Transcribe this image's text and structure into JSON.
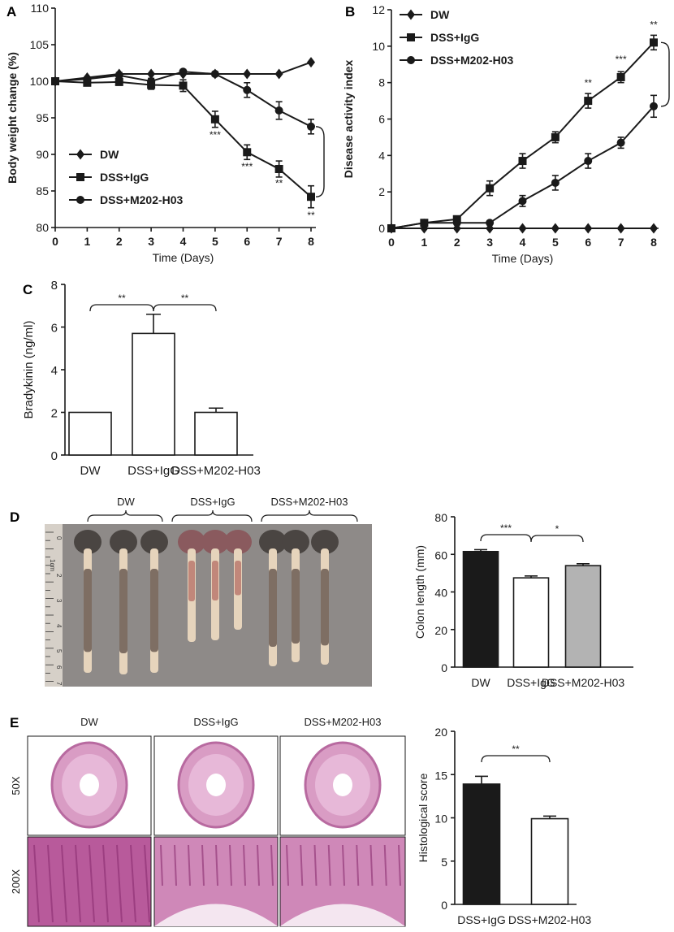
{
  "colors": {
    "ink": "#1a1a1a",
    "grey_bar": "#b3b3b3",
    "white": "#ffffff",
    "photo_bg": "#8e8a88",
    "tissue": "#c86fa6"
  },
  "panels": {
    "a": "A",
    "b": "B",
    "c": "C",
    "d": "D",
    "e": "E"
  },
  "chart_data": [
    {
      "id": "A",
      "type": "line",
      "xlabel": "Time (Days)",
      "ylabel": "Body weight change (%)",
      "x": [
        0,
        1,
        2,
        3,
        4,
        5,
        6,
        7,
        8
      ],
      "xlim": [
        0,
        8
      ],
      "ylim": [
        80,
        110
      ],
      "yticks": [
        80,
        85,
        90,
        95,
        100,
        105,
        110
      ],
      "series": [
        {
          "name": "DW",
          "marker": "diamond",
          "values": [
            100,
            100.5,
            101,
            101,
            101,
            101,
            101,
            101,
            102.6
          ],
          "err": [
            0,
            0,
            0,
            0,
            0,
            0,
            0,
            0,
            0
          ]
        },
        {
          "name": "DSS+IgG",
          "marker": "square",
          "values": [
            100,
            99.8,
            99.9,
            99.5,
            99.4,
            94.8,
            90.3,
            88,
            84.2
          ],
          "err": [
            0.3,
            0.4,
            0.4,
            0.6,
            0.8,
            1.1,
            1,
            1.1,
            1.5
          ]
        },
        {
          "name": "DSS+M202-H03",
          "marker": "circle",
          "values": [
            100,
            100.3,
            100.8,
            100,
            101.3,
            101,
            98.8,
            96,
            93.8
          ],
          "err": [
            0.3,
            0.3,
            0.4,
            0.4,
            0.3,
            0.3,
            1,
            1.2,
            1
          ]
        }
      ],
      "annotations": [
        {
          "x": 5,
          "y": 92.2,
          "text": "***"
        },
        {
          "x": 6,
          "y": 87.9,
          "text": "***"
        },
        {
          "x": 7,
          "y": 85.6,
          "text": "**"
        },
        {
          "x": 8,
          "y": 81.2,
          "text": "**"
        }
      ],
      "bracket_between": [
        "DSS+IgG",
        "DSS+M202-H03"
      ],
      "legend": "bottom-left"
    },
    {
      "id": "B",
      "type": "line",
      "xlabel": "Time (Days)",
      "ylabel": "Disease activity index",
      "x": [
        0,
        1,
        2,
        3,
        4,
        5,
        6,
        7,
        8
      ],
      "xlim": [
        0,
        8
      ],
      "ylim": [
        0,
        12
      ],
      "yticks": [
        0,
        2,
        4,
        6,
        8,
        10,
        12
      ],
      "series": [
        {
          "name": "DW",
          "marker": "diamond",
          "values": [
            0,
            0,
            0,
            0,
            0,
            0,
            0,
            0,
            0
          ],
          "err": [
            0,
            0,
            0,
            0,
            0,
            0,
            0,
            0,
            0
          ]
        },
        {
          "name": "DSS+IgG",
          "marker": "square",
          "values": [
            0,
            0.3,
            0.5,
            2.2,
            3.7,
            5,
            7,
            8.3,
            10.2
          ],
          "err": [
            0,
            0.1,
            0.1,
            0.4,
            0.4,
            0.3,
            0.4,
            0.3,
            0.4
          ]
        },
        {
          "name": "DSS+M202-H03",
          "marker": "circle",
          "values": [
            0,
            0.3,
            0.3,
            0.3,
            1.5,
            2.5,
            3.7,
            4.7,
            6.7
          ],
          "err": [
            0,
            0.1,
            0.1,
            0.1,
            0.3,
            0.4,
            0.4,
            0.3,
            0.6
          ]
        }
      ],
      "annotations": [
        {
          "x": 6,
          "y": 7.8,
          "text": "**"
        },
        {
          "x": 7,
          "y": 9.1,
          "text": "***"
        },
        {
          "x": 8,
          "y": 11,
          "text": "**"
        }
      ],
      "bracket_between": [
        "DSS+IgG",
        "DSS+M202-H03"
      ],
      "legend": "top-left"
    },
    {
      "id": "C",
      "type": "bar",
      "ylabel": "Bradykinin (ng/ml)",
      "categories": [
        "DW",
        "DSS+IgG",
        "DSS+M202-H03"
      ],
      "values": [
        2,
        5.7,
        2
      ],
      "err": [
        0,
        0.9,
        0.2
      ],
      "fills": [
        "white",
        "white",
        "white"
      ],
      "ylim": [
        0,
        8
      ],
      "yticks": [
        0,
        2,
        4,
        6,
        8
      ],
      "comparisons": [
        {
          "from": 0,
          "to": 1,
          "text": "**"
        },
        {
          "from": 1,
          "to": 2,
          "text": "**"
        }
      ]
    },
    {
      "id": "D",
      "type": "bar",
      "ylabel": "Colon length (mm)",
      "categories": [
        "DW",
        "DSS+IgG",
        "DSS+M202-H03"
      ],
      "values": [
        61.5,
        47.5,
        54
      ],
      "err": [
        1,
        1,
        1
      ],
      "fills": [
        "ink",
        "white",
        "grey_bar"
      ],
      "ylim": [
        0,
        80
      ],
      "yticks": [
        0,
        20,
        40,
        60,
        80
      ],
      "comparisons": [
        {
          "from": 0,
          "to": 1,
          "text": "***"
        },
        {
          "from": 1,
          "to": 2,
          "text": "*"
        }
      ]
    },
    {
      "id": "E",
      "type": "bar",
      "ylabel": "Histological score",
      "categories": [
        "DSS+IgG",
        "DSS+M202-H03"
      ],
      "values": [
        13.9,
        9.9
      ],
      "err": [
        0.9,
        0.3
      ],
      "fills": [
        "ink",
        "white"
      ],
      "ylim": [
        0,
        20
      ],
      "yticks": [
        0,
        5,
        10,
        15,
        20
      ],
      "comparisons": [
        {
          "from": 0,
          "to": 1,
          "text": "**"
        }
      ]
    }
  ],
  "photo_d": {
    "groups": [
      "DW",
      "DSS+IgG",
      "DSS+M202-H03"
    ],
    "ruler_label": "1cm",
    "ruler_numbers": [
      "0",
      "2",
      "3",
      "4",
      "5",
      "6",
      "7"
    ]
  },
  "histology_e": {
    "columns": [
      "DW",
      "DSS+IgG",
      "DSS+M202-H03"
    ],
    "rows": [
      "50X",
      "200X"
    ]
  }
}
